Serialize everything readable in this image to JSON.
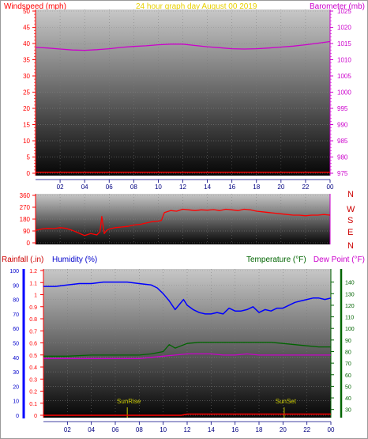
{
  "colors": {
    "wind_axis": "#ff0000",
    "baro_axis": "#cc00cc",
    "title": "#e8d000",
    "hour_axis": "#000080",
    "rain": "#ff0000",
    "humidity": "#0000ff",
    "humidity_axis": "#0000cc",
    "temperature": "#006400",
    "dew_point": "#cc00cc",
    "sun": "#c8c800",
    "wind_direction": "#ff0000",
    "compass": "#cc0000"
  },
  "chart_data": [
    {
      "type": "line",
      "title": "24 hour graph day   August 00 2019",
      "ylabel_left": "Windspeed (mph)",
      "ylabel_right": "Barometer (mb)",
      "x_ticks": [
        "02",
        "04",
        "06",
        "08",
        "10",
        "12",
        "14",
        "16",
        "18",
        "20",
        "22",
        "00"
      ],
      "y_left_ticks": [
        "0",
        "5",
        "10",
        "15",
        "20",
        "25",
        "30",
        "35",
        "40",
        "45",
        "50"
      ],
      "y_right_ticks": [
        "975",
        "980",
        "985",
        "990",
        "995",
        "1000",
        "1005",
        "1010",
        "1015",
        "1020",
        "1025"
      ],
      "ylim_left": [
        0,
        50
      ],
      "ylim_right": [
        975,
        1025
      ],
      "grid": true,
      "series": [
        {
          "name": "Barometer (mb)",
          "axis": "right",
          "x": [
            0,
            1,
            2,
            3,
            4,
            5,
            6,
            7,
            8,
            9,
            10,
            11,
            12,
            13,
            14,
            15,
            16,
            17,
            18,
            19,
            20,
            21,
            22,
            23,
            24
          ],
          "y": [
            1013.8,
            1013.6,
            1013.3,
            1013.0,
            1012.9,
            1013.1,
            1013.4,
            1013.8,
            1014.1,
            1014.3,
            1014.6,
            1014.8,
            1014.8,
            1014.4,
            1014.0,
            1013.7,
            1013.4,
            1013.3,
            1013.4,
            1013.6,
            1013.9,
            1014.2,
            1014.6,
            1015.1,
            1015.6
          ]
        },
        {
          "name": "Windspeed (mph)",
          "axis": "left",
          "x": [
            0,
            24
          ],
          "y": [
            0.3,
            0.3
          ]
        }
      ]
    },
    {
      "type": "line",
      "ylabel_right": "N W S E N",
      "compass_labels": [
        "N",
        "W",
        "S",
        "E",
        "N"
      ],
      "y_ticks": [
        "0",
        "90",
        "180",
        "270",
        "360"
      ],
      "ylim": [
        0,
        360
      ],
      "grid": true,
      "series": [
        {
          "name": "Wind direction",
          "x": [
            0,
            0.5,
            1,
            1.5,
            2,
            2.5,
            3,
            3.5,
            4,
            4.5,
            5,
            5.25,
            5.4,
            5.6,
            5.8,
            6,
            6.5,
            7,
            7.5,
            8,
            8.5,
            9,
            9.5,
            10,
            10.25,
            10.5,
            11,
            11.5,
            12,
            12.5,
            13,
            13.5,
            14,
            14.5,
            15,
            15.5,
            16,
            16.5,
            17,
            17.5,
            18,
            18.5,
            19,
            19.5,
            20,
            20.5,
            21,
            21.5,
            22,
            22.5,
            23,
            23.5,
            24
          ],
          "y": [
            95,
            105,
            110,
            108,
            115,
            110,
            95,
            75,
            55,
            70,
            60,
            85,
            200,
            70,
            95,
            105,
            115,
            120,
            125,
            135,
            140,
            150,
            160,
            165,
            170,
            230,
            245,
            240,
            255,
            250,
            245,
            250,
            248,
            252,
            245,
            255,
            250,
            245,
            255,
            250,
            240,
            235,
            230,
            225,
            220,
            215,
            210,
            210,
            205,
            210,
            210,
            215,
            210
          ]
        }
      ]
    },
    {
      "type": "line",
      "ylabel_left_rain": "Rainfall (.in)",
      "ylabel_left_humidity": "Humidity (%)",
      "ylabel_right_temperature": "Temperature (°F)",
      "ylabel_right_dew": "Dew Point (°F)",
      "x_ticks": [
        "02",
        "04",
        "06",
        "08",
        "10",
        "12",
        "14",
        "16",
        "18",
        "20",
        "22",
        "00"
      ],
      "humidity_ticks": [
        "0",
        "10",
        "20",
        "30",
        "40",
        "50",
        "60",
        "70",
        "80",
        "90",
        "100"
      ],
      "rain_ticks": [
        "0",
        "0.1",
        "0.2",
        "0.3",
        "0.4",
        "0.5",
        "0.6",
        "0.7",
        "0.8",
        "0.9",
        "1",
        "1.1",
        "1.2"
      ],
      "temp_ticks": [
        "30",
        "40",
        "50",
        "60",
        "70",
        "80",
        "90",
        "100",
        "110",
        "120",
        "130",
        "140"
      ],
      "ylim_humidity": [
        0,
        100
      ],
      "ylim_rain": [
        0,
        1.2
      ],
      "ylim_temp": [
        25,
        150
      ],
      "grid": true,
      "annotations": [
        {
          "label": "SunRise",
          "x": 7.0
        },
        {
          "label": "SunSet",
          "x": 20.1
        }
      ],
      "series": [
        {
          "name": "Humidity (%)",
          "axis": "humidity",
          "x": [
            0,
            1,
            2,
            3,
            4,
            5,
            6,
            7,
            8,
            9,
            9.5,
            10,
            10.5,
            11,
            11.3,
            11.7,
            12,
            12.5,
            13,
            13.5,
            14,
            14.5,
            15,
            15.5,
            16,
            16.5,
            17,
            17.5,
            18,
            18.5,
            19,
            19.5,
            20,
            20.5,
            21,
            21.5,
            22,
            22.5,
            23,
            23.5,
            24
          ],
          "y": [
            89,
            89,
            90,
            91,
            91,
            92,
            92,
            92,
            91,
            90,
            88,
            84,
            79,
            73,
            76,
            80,
            76,
            73,
            71,
            70,
            70,
            71,
            70,
            74,
            72,
            72,
            73,
            75,
            71,
            73,
            72,
            74,
            74,
            76,
            78,
            79,
            80,
            81,
            81,
            80,
            81
          ]
        },
        {
          "name": "Temperature (°F)",
          "axis": "temp",
          "x": [
            0,
            2,
            4,
            6,
            8,
            9,
            10,
            10.5,
            11,
            12,
            13,
            14,
            15,
            16,
            17,
            18,
            19,
            20,
            21,
            22,
            23,
            24
          ],
          "y": [
            76,
            76,
            77,
            77,
            77,
            78,
            80,
            86,
            83,
            87,
            88,
            88,
            88,
            88,
            88,
            88,
            88,
            87,
            86,
            85,
            84,
            84
          ]
        },
        {
          "name": "Dew Point (°F)",
          "axis": "temp",
          "x": [
            0,
            2,
            4,
            6,
            8,
            9,
            10,
            11,
            12,
            13,
            14,
            15,
            16,
            17,
            18,
            19,
            20,
            21,
            22,
            23,
            24
          ],
          "y": [
            74,
            74,
            74,
            74,
            74,
            75,
            76,
            77,
            78,
            78,
            78,
            77,
            77,
            78,
            77,
            77,
            77,
            77,
            77,
            77,
            77
          ]
        },
        {
          "name": "Rainfall (.in)",
          "axis": "rain",
          "x": [
            0,
            11.5,
            12,
            24
          ],
          "y": [
            0,
            0,
            0.01,
            0.01
          ]
        }
      ]
    }
  ]
}
